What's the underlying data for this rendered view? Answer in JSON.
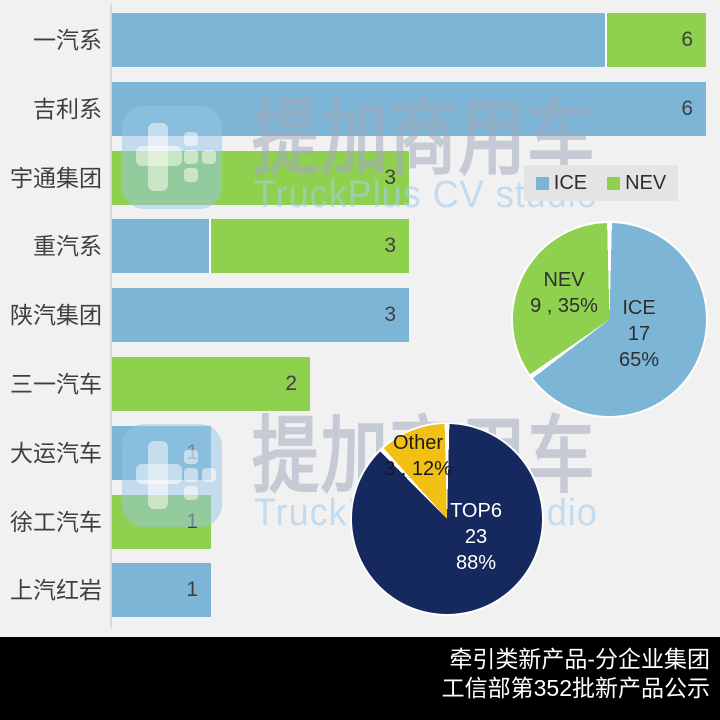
{
  "background": "#F1F1F2",
  "colors": {
    "ice": "#7CB5D6",
    "nev": "#90D04F",
    "top6": "#16295E",
    "other": "#F2C013",
    "text_dark": "#3F3F3F",
    "legend_bg": "#E4E4E4",
    "footer_bg": "#000000",
    "footer_text": "#FFFFFF"
  },
  "chart_data": [
    {
      "type": "bar",
      "orientation": "horizontal",
      "stacked": true,
      "title": "",
      "xlabel": "",
      "ylabel": "",
      "xlim": [
        0,
        6
      ],
      "grid": false,
      "legend_position": "right",
      "categories": [
        "一汽系",
        "吉利系",
        "宇通集团",
        "重汽系",
        "陕汽集团",
        "三一汽车",
        "大运汽车",
        "徐工汽车",
        "上汽红岩"
      ],
      "series": [
        {
          "name": "ICE",
          "color": "#7CB5D6",
          "values": [
            5,
            6,
            0,
            1,
            3,
            0,
            1,
            0,
            1
          ]
        },
        {
          "name": "NEV",
          "color": "#90D04F",
          "values": [
            1,
            0,
            3,
            2,
            0,
            2,
            0,
            1,
            0
          ]
        }
      ],
      "bar_labels": [
        "6",
        "6",
        "3",
        "3",
        "3",
        "2",
        "1",
        "1",
        "1"
      ]
    },
    {
      "type": "pie",
      "title": "",
      "start_angle_deg": 0,
      "direction": "clockwise",
      "slices": [
        {
          "label": "ICE",
          "value": 17,
          "pct": 65,
          "color": "#7CB5D6",
          "text_color": "#2F2F2F",
          "lines": [
            "ICE",
            "17",
            "65%"
          ]
        },
        {
          "label": "NEV",
          "value": 9,
          "pct": 35,
          "color": "#90D04F",
          "text_color": "#2F2F2F",
          "lines": [
            "NEV",
            "9 , 35%"
          ]
        }
      ]
    },
    {
      "type": "pie",
      "title": "",
      "start_angle_deg": 0,
      "direction": "clockwise",
      "slices": [
        {
          "label": "TOP6",
          "value": 23,
          "pct": 88,
          "color": "#16295E",
          "text_color": "#FFFFFF",
          "lines": [
            "TOP6",
            "23",
            "88%"
          ]
        },
        {
          "label": "Other",
          "value": 3,
          "pct": 12,
          "color": "#F2C013",
          "text_color": "#1A1A1A",
          "lines": [
            "Other",
            "3 , 12%"
          ]
        }
      ]
    }
  ],
  "legend": {
    "items": [
      {
        "label": "ICE"
      },
      {
        "label": "NEV"
      }
    ]
  },
  "watermark": {
    "cn": "提加商用车",
    "en": "TruckPlus CV studio"
  },
  "footer": {
    "line1": "牵引类新产品-分企业集团",
    "line2": "工信部第352批新产品公示"
  }
}
